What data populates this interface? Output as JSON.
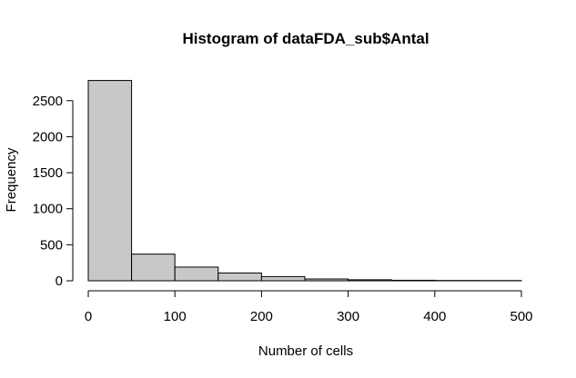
{
  "chart_data": {
    "type": "bar",
    "title": "Histogram of dataFDA_sub$Antal",
    "xlabel": "Number of cells",
    "ylabel": "Frequency",
    "bin_edges": [
      0,
      50,
      100,
      150,
      200,
      250,
      300,
      350,
      400,
      450,
      500
    ],
    "values": [
      2780,
      370,
      190,
      108,
      58,
      25,
      14,
      7,
      4,
      3
    ],
    "xlim": [
      0,
      500
    ],
    "ylim": [
      0,
      2800
    ],
    "xticks": [
      0,
      100,
      200,
      300,
      400,
      500
    ],
    "yticks": [
      0,
      500,
      1000,
      1500,
      2000,
      2500
    ],
    "bar_color": "#c8c8c8",
    "grid": false
  }
}
